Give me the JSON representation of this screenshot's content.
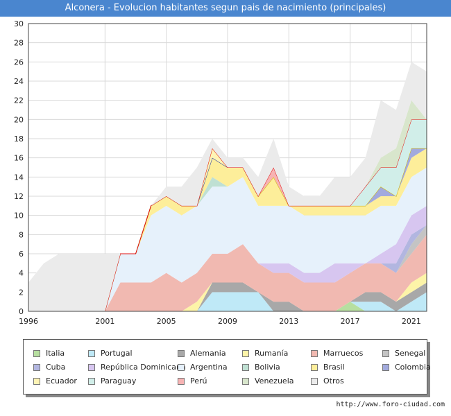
{
  "title": "Alconera - Evolucion habitantes segun pais de nacimiento (principales)",
  "footer": "http://www.foro-ciudad.com",
  "chart_data": {
    "type": "area",
    "stacked": true,
    "x": [
      1996,
      1997,
      1998,
      1999,
      2000,
      2001,
      2002,
      2003,
      2004,
      2005,
      2006,
      2007,
      2008,
      2009,
      2010,
      2011,
      2012,
      2013,
      2014,
      2015,
      2016,
      2017,
      2018,
      2019,
      2020,
      2021,
      2022
    ],
    "xticks": [
      1996,
      2001,
      2005,
      2009,
      2013,
      2017,
      2021
    ],
    "ylim": [
      0,
      30
    ],
    "yticks": [
      0,
      2,
      4,
      6,
      8,
      10,
      12,
      14,
      16,
      18,
      20,
      22,
      24,
      26,
      28,
      30
    ],
    "grid": true,
    "legend_position": "bottom",
    "series": [
      {
        "name": "Italia",
        "color": "#b7dfa0",
        "values": [
          0,
          0,
          0,
          0,
          0,
          0,
          0,
          0,
          0,
          0,
          0,
          0,
          0,
          0,
          0,
          0,
          0,
          0,
          0,
          0,
          0,
          1,
          0,
          0,
          0,
          0,
          0
        ]
      },
      {
        "name": "Portugal",
        "color": "#bfe9f7",
        "values": [
          0,
          0,
          0,
          0,
          0,
          0,
          0,
          0,
          0,
          0,
          0,
          0,
          2,
          2,
          2,
          2,
          0,
          0,
          0,
          0,
          0,
          0,
          1,
          1,
          0,
          1,
          2
        ]
      },
      {
        "name": "Alemania",
        "color": "#a8a8a8",
        "values": [
          0,
          0,
          0,
          0,
          0,
          0,
          0,
          0,
          0,
          0,
          0,
          0,
          1,
          1,
          1,
          0,
          1,
          1,
          0,
          0,
          0,
          0,
          1,
          1,
          1,
          1,
          1
        ]
      },
      {
        "name": "Rumanía",
        "color": "#fdf4a8",
        "values": [
          0,
          0,
          0,
          0,
          0,
          0,
          0,
          0,
          0,
          0,
          0,
          1,
          0,
          0,
          0,
          0,
          0,
          0,
          0,
          0,
          0,
          0,
          0,
          0,
          0,
          1,
          1
        ]
      },
      {
        "name": "Marruecos",
        "color": "#f1b9b1",
        "values": [
          0,
          0,
          0,
          0,
          0,
          0,
          3,
          3,
          3,
          4,
          3,
          3,
          3,
          3,
          4,
          3,
          3,
          3,
          3,
          3,
          3,
          3,
          3,
          3,
          3,
          3,
          4
        ]
      },
      {
        "name": "Senegal",
        "color": "#c4c4c4",
        "values": [
          0,
          0,
          0,
          0,
          0,
          0,
          0,
          0,
          0,
          0,
          0,
          0,
          0,
          0,
          0,
          0,
          0,
          0,
          0,
          0,
          0,
          0,
          0,
          0,
          0,
          1,
          1
        ]
      },
      {
        "name": "Cuba",
        "color": "#b2b6e0",
        "values": [
          0,
          0,
          0,
          0,
          0,
          0,
          0,
          0,
          0,
          0,
          0,
          0,
          0,
          0,
          0,
          0,
          0,
          0,
          0,
          0,
          0,
          0,
          0,
          0,
          1,
          1,
          0
        ]
      },
      {
        "name": "República Dominicana",
        "color": "#d7c6f0",
        "values": [
          0,
          0,
          0,
          0,
          0,
          0,
          0,
          0,
          0,
          0,
          0,
          0,
          0,
          0,
          0,
          0,
          1,
          1,
          1,
          1,
          2,
          1,
          0,
          1,
          2,
          2,
          2
        ]
      },
      {
        "name": "Argentina",
        "color": "#e6f1fb",
        "values": [
          0,
          0,
          0,
          0,
          0,
          0,
          3,
          3,
          7,
          7,
          7,
          7,
          7,
          7,
          7,
          6,
          6,
          6,
          6,
          6,
          5,
          5,
          5,
          5,
          4,
          4,
          4
        ]
      },
      {
        "name": "Bolivia",
        "color": "#bfe0d3",
        "values": [
          0,
          0,
          0,
          0,
          0,
          0,
          0,
          0,
          0,
          0,
          0,
          0,
          1,
          0,
          0,
          0,
          0,
          0,
          0,
          0,
          0,
          0,
          0,
          0,
          0,
          0,
          0
        ]
      },
      {
        "name": "Brasil",
        "color": "#fdee9a",
        "values": [
          0,
          0,
          0,
          0,
          0,
          0,
          0,
          0,
          1,
          1,
          1,
          0,
          2,
          2,
          1,
          1,
          3,
          0,
          1,
          1,
          1,
          1,
          1,
          1,
          1,
          2,
          2
        ]
      },
      {
        "name": "Colombia",
        "color": "#a2aadd",
        "values": [
          0,
          0,
          0,
          0,
          0,
          0,
          0,
          0,
          0,
          0,
          0,
          0,
          0,
          0,
          0,
          0,
          0,
          0,
          0,
          0,
          0,
          0,
          0,
          1,
          0,
          1,
          0
        ]
      },
      {
        "name": "Ecuador",
        "color": "#fff4b5",
        "values": [
          0,
          0,
          0,
          0,
          0,
          0,
          0,
          0,
          0,
          0,
          0,
          0,
          1,
          0,
          0,
          0,
          0,
          0,
          0,
          0,
          0,
          0,
          0,
          0,
          0,
          0,
          0
        ]
      },
      {
        "name": "Paraguay",
        "color": "#d1eee9",
        "values": [
          0,
          0,
          0,
          0,
          0,
          0,
          0,
          0,
          0,
          0,
          0,
          0,
          0,
          0,
          0,
          0,
          0,
          0,
          0,
          0,
          0,
          0,
          2,
          2,
          3,
          3,
          3
        ]
      },
      {
        "name": "Perú",
        "color": "#f7b3b3",
        "values": [
          0,
          0,
          0,
          0,
          0,
          0,
          0,
          0,
          0,
          0,
          0,
          0,
          0,
          0,
          0,
          0,
          1,
          0,
          0,
          0,
          0,
          0,
          0,
          0,
          0,
          0,
          0
        ]
      },
      {
        "name": "Venezuela",
        "color": "#d8e6cc",
        "values": [
          0,
          0,
          0,
          0,
          0,
          0,
          0,
          0,
          0,
          0,
          0,
          0,
          0,
          0,
          0,
          0,
          0,
          0,
          0,
          0,
          0,
          0,
          0,
          1,
          2,
          2,
          0
        ]
      },
      {
        "name": "Otros",
        "color": "#ebebeb",
        "values": [
          3,
          5,
          6,
          6,
          6,
          6,
          0,
          0,
          0,
          1,
          2,
          4,
          1,
          1,
          1,
          2,
          3,
          2,
          1,
          1,
          3,
          3,
          3,
          6,
          4,
          4,
          5
        ]
      }
    ]
  }
}
